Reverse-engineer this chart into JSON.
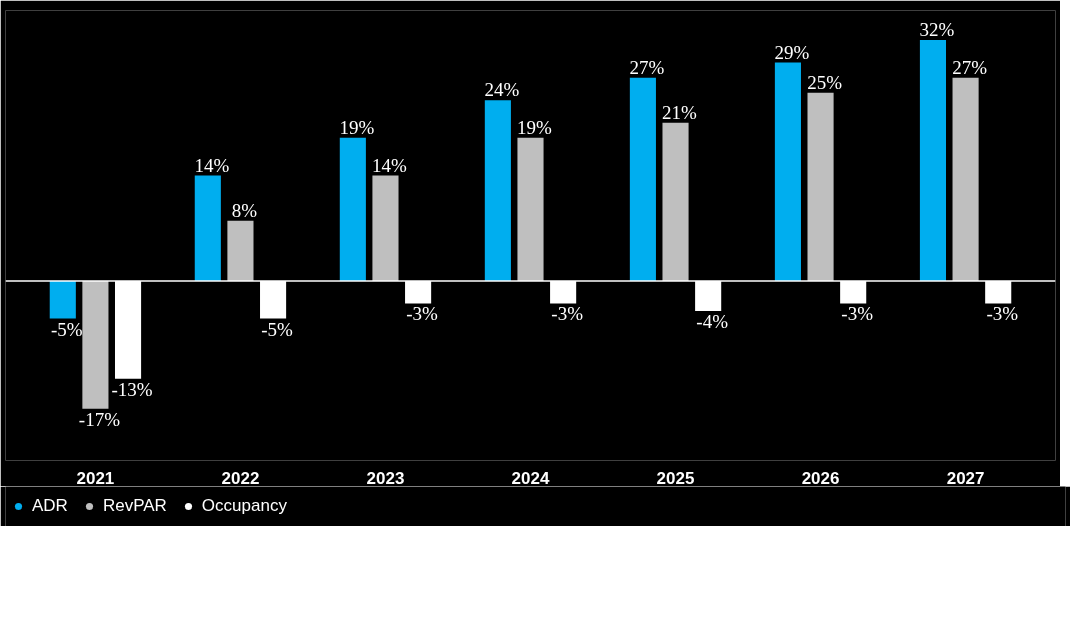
{
  "chart_data": {
    "type": "bar",
    "categories": [
      "2021",
      "2022",
      "2023",
      "2024",
      "2025",
      "2026",
      "2027"
    ],
    "series": [
      {
        "name": "ADR",
        "color": "#00aeef",
        "values": [
          -5,
          14,
          19,
          24,
          27,
          29,
          32
        ],
        "value_labels": [
          "-5%",
          "14%",
          "19%",
          "24%",
          "27%",
          "29%",
          "32%"
        ]
      },
      {
        "name": "RevPAR",
        "color": "#bfbfbf",
        "values": [
          -17,
          8,
          14,
          19,
          21,
          25,
          27
        ],
        "value_labels": [
          "-17%",
          "8%",
          "14%",
          "19%",
          "21%",
          "25%",
          "27%"
        ]
      },
      {
        "name": "Occupancy",
        "color": "#ffffff",
        "values": [
          -13,
          -5,
          -3,
          -3,
          -4,
          -3,
          -3
        ],
        "value_labels": [
          "-13%",
          "-5%",
          "-3%",
          "-3%",
          "-4%",
          "-3%",
          "-3%"
        ]
      }
    ],
    "legend": "bottom left",
    "grid": false
  }
}
